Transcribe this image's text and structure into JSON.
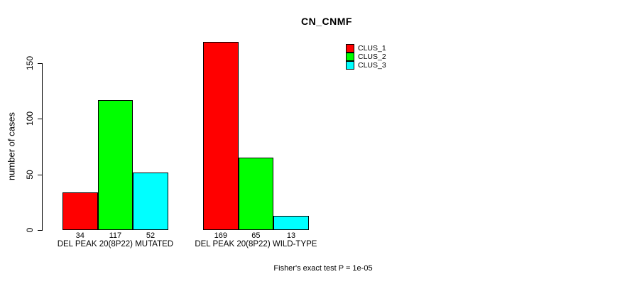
{
  "chart_data": {
    "type": "bar",
    "title": "CN_CNMF",
    "xlabel": "",
    "ylabel": "number of cases",
    "yticks": [
      0,
      50,
      100,
      150
    ],
    "ylim": [
      0,
      175
    ],
    "grid": false,
    "legend_position": "top-right",
    "categories": [
      "DEL PEAK 20(8P22) MUTATED",
      "DEL PEAK 20(8P22) WILD-TYPE"
    ],
    "series": [
      {
        "name": "CLUS_1",
        "color": "#FF0000",
        "values": [
          34,
          169
        ]
      },
      {
        "name": "CLUS_2",
        "color": "#00FF00",
        "values": [
          117,
          65
        ]
      },
      {
        "name": "CLUS_3",
        "color": "#00FFFF",
        "values": [
          52,
          13
        ]
      }
    ],
    "bar_value_labels": [
      [
        "34",
        "117",
        "52"
      ],
      [
        "169",
        "65",
        "13"
      ]
    ],
    "annotation": "Fisher's exact test P = 1e-05"
  }
}
